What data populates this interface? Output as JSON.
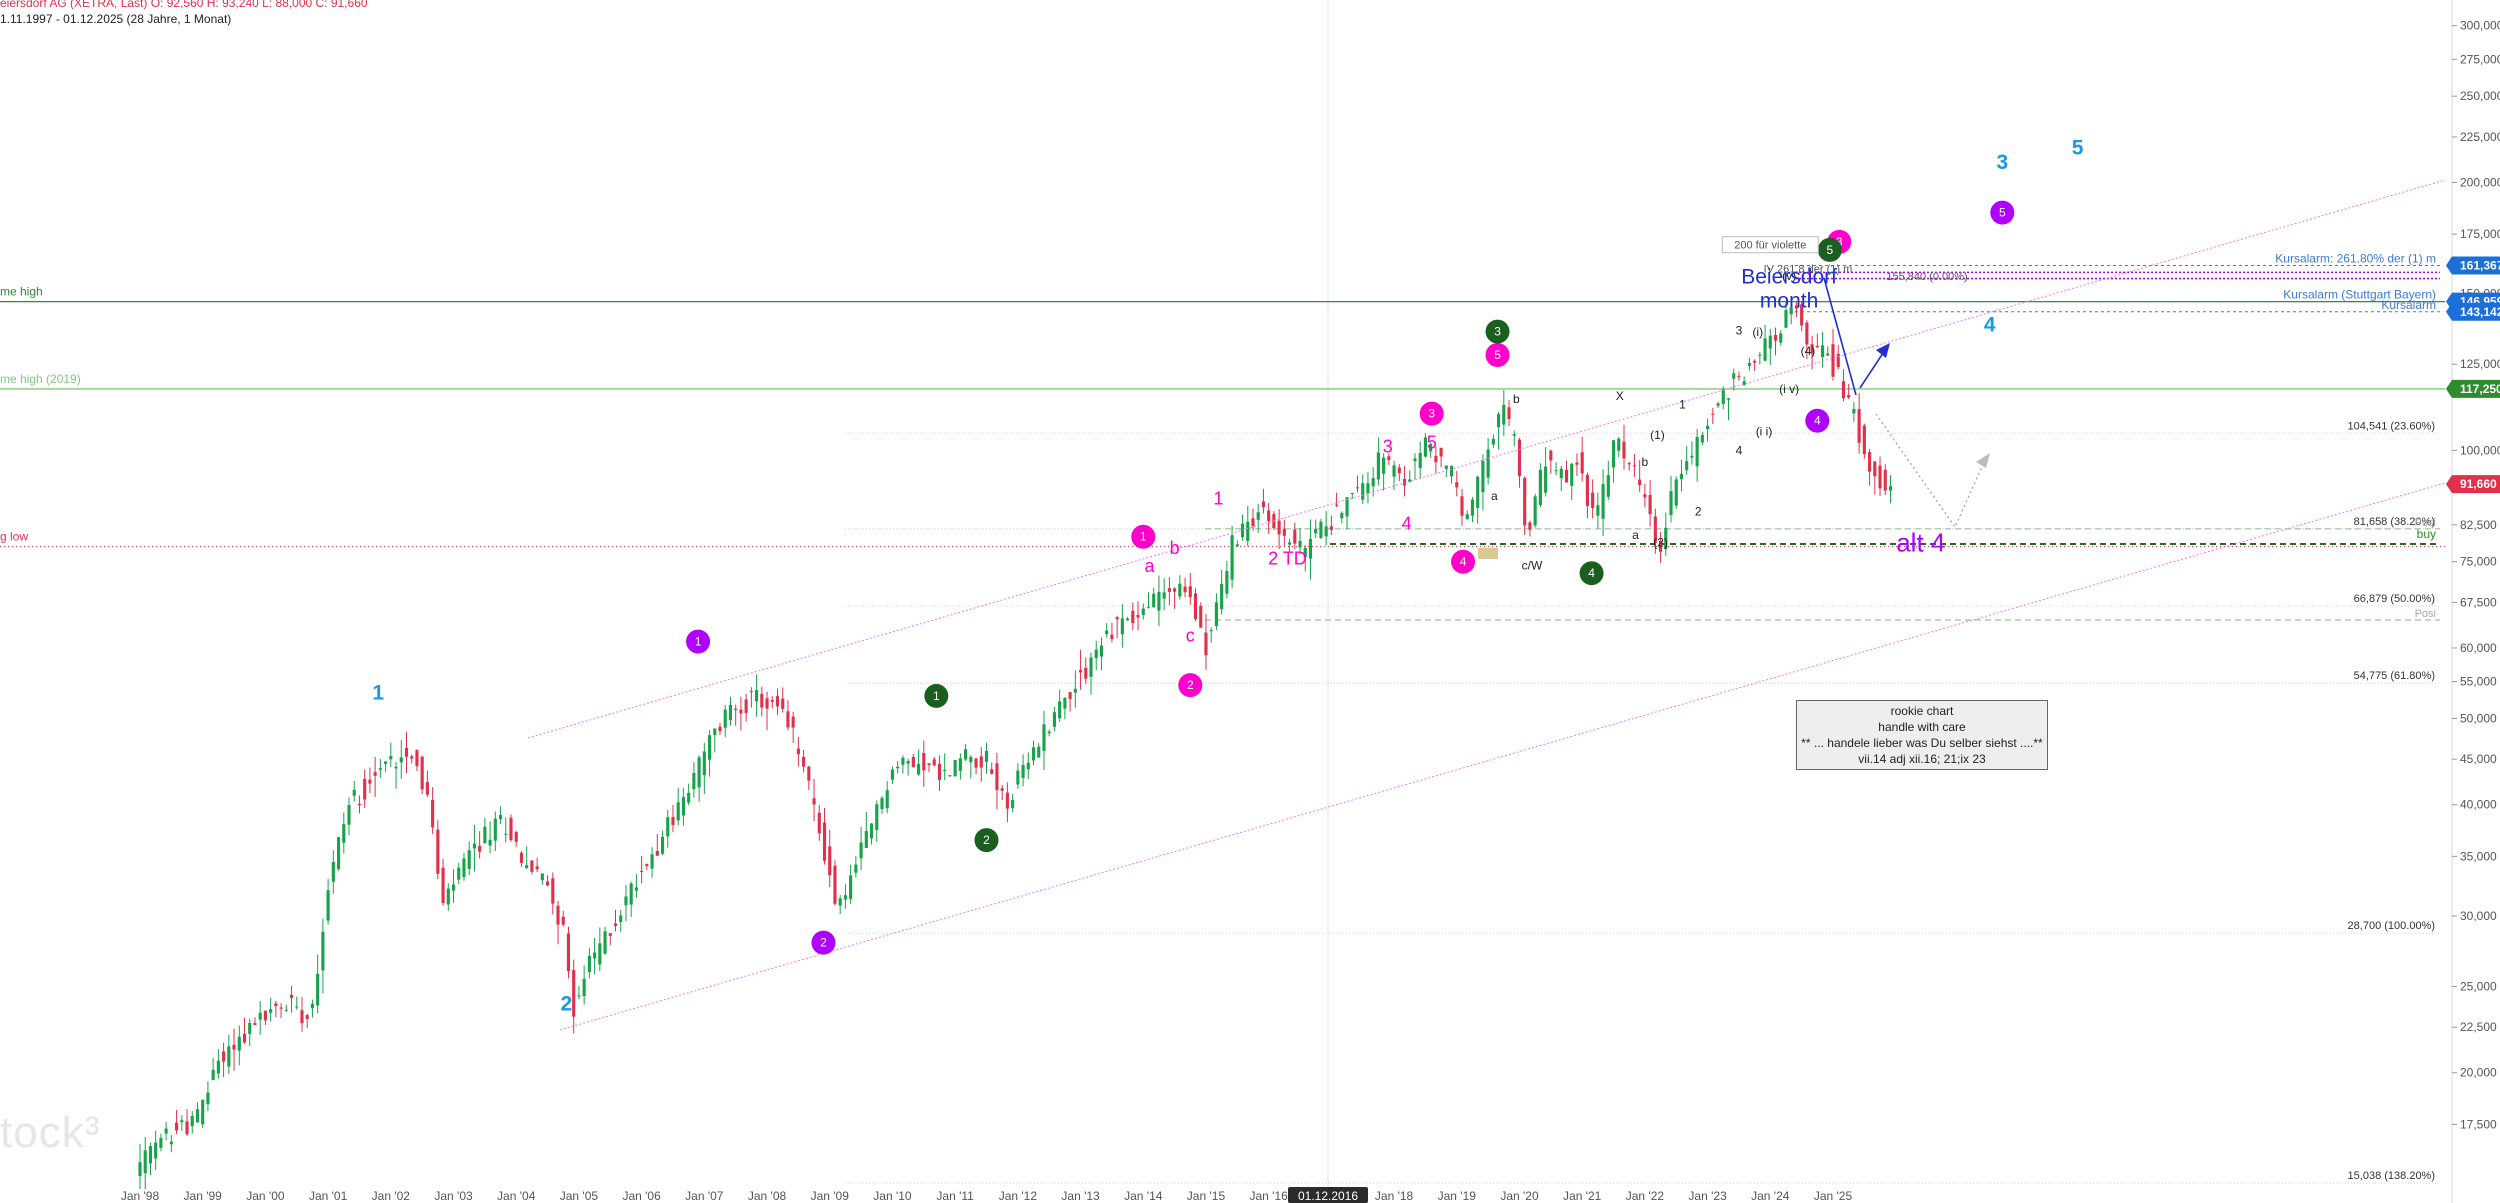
{
  "header": {
    "line1": "eiersdorf AG (XETRA, Last)  O: 92,560  H: 93,240  L: 88,000  C: 91,660",
    "line2": "1.11.1997 - 01.12.2025  (28 Jahre, 1 Monat)"
  },
  "watermark": "tock³",
  "info_box": {
    "lines": [
      "rookie chart",
      "handle with care",
      "** ... handele lieber was Du selber siehst ....**",
      "vii.14 adj xii.16; 21;ix 23"
    ]
  },
  "colors": {
    "up": "#16a34a",
    "down": "#e0314b",
    "magenta": "#ff00cc",
    "purple": "#b000ff",
    "blue": "#1a9ae0",
    "darkgreen": "#1a5e20"
  },
  "chart_data": {
    "type": "candlestick",
    "scale": "log",
    "interval": "1 Monat",
    "ylim": [
      15038,
      310000
    ],
    "y_ticks": [
      17500,
      20000,
      22500,
      25000,
      30000,
      35000,
      40000,
      45000,
      50000,
      55000,
      60000,
      67500,
      75000,
      82500,
      100000,
      125000,
      150000,
      175000,
      200000,
      225000,
      250000,
      275000,
      300000
    ],
    "y_tick_labels": [
      "17,500",
      "20,000",
      "22,500",
      "25,000",
      "30,000",
      "35,000",
      "40,000",
      "45,000",
      "50,000",
      "55,000",
      "60,000",
      "67,500",
      "75,000",
      "82,500",
      "100,000",
      "125,000",
      "150,000",
      "175,000",
      "200,000",
      "225,000",
      "250,000",
      "275,000",
      "300,000"
    ],
    "x_ticks": [
      "Jan '98",
      "Jan '99",
      "Jan '00",
      "Jan '01",
      "Jan '02",
      "Jan '03",
      "Jan '04",
      "Jan '05",
      "Jan '06",
      "Jan '07",
      "Jan '08",
      "Jan '09",
      "Jan '10",
      "Jan '11",
      "Jan '12",
      "Jan '13",
      "Jan '14",
      "Jan '15",
      "Jan '16",
      "Jan '18",
      "Jan '19",
      "Jan '20",
      "Jan '21",
      "Jan '22",
      "Jan '23",
      "Jan '24",
      "Jan '25"
    ],
    "x_tick_labels": [
      "Jan '98",
      "Jan '99",
      "Jan '00",
      "Jan '01",
      "Jan '02",
      "Jan '03",
      "Jan '04",
      "Jan '05",
      "Jan '06",
      "Jan '07",
      "Jan '08",
      "Jan '09",
      "Jan '10",
      "Jan '11",
      "Jan '12",
      "Jan '13",
      "Jan '14",
      "Jan '15",
      "Jan '16",
      "Jan '18",
      "Jan '19",
      "Jan '20",
      "Jan '21",
      "Jan '22",
      "Jan '23",
      "Jan '24",
      "Jan '25"
    ],
    "x_cursor_label": "01.12.2016",
    "price_path": [
      [
        1998.0,
        15500
      ],
      [
        1998.5,
        17000
      ],
      [
        1999.0,
        17800
      ],
      [
        1999.3,
        20500
      ],
      [
        1999.7,
        22000
      ],
      [
        2000.0,
        23000
      ],
      [
        2000.5,
        24000
      ],
      [
        2000.8,
        23200
      ],
      [
        2001.1,
        33000
      ],
      [
        2001.4,
        40000
      ],
      [
        2001.8,
        43000
      ],
      [
        2002.1,
        45000
      ],
      [
        2002.4,
        46500
      ],
      [
        2002.7,
        40000
      ],
      [
        2002.9,
        30500
      ],
      [
        2003.2,
        34000
      ],
      [
        2003.6,
        37000
      ],
      [
        2003.9,
        38500
      ],
      [
        2004.2,
        34500
      ],
      [
        2004.6,
        32500
      ],
      [
        2004.8,
        29500
      ],
      [
        2005.0,
        23800
      ],
      [
        2005.3,
        27000
      ],
      [
        2005.6,
        29000
      ],
      [
        2006.0,
        33000
      ],
      [
        2006.5,
        38000
      ],
      [
        2006.8,
        41000
      ],
      [
        2007.1,
        46000
      ],
      [
        2007.5,
        51500
      ],
      [
        2007.9,
        52500
      ],
      [
        2008.3,
        51000
      ],
      [
        2008.6,
        46000
      ],
      [
        2008.9,
        38000
      ],
      [
        2009.2,
        30500
      ],
      [
        2009.5,
        34000
      ],
      [
        2009.8,
        39000
      ],
      [
        2010.1,
        44000
      ],
      [
        2010.5,
        45000
      ],
      [
        2010.9,
        43000
      ],
      [
        2011.3,
        46000
      ],
      [
        2011.6,
        44500
      ],
      [
        2011.9,
        40000
      ],
      [
        2012.2,
        44000
      ],
      [
        2012.6,
        50000
      ],
      [
        2012.9,
        53500
      ],
      [
        2013.3,
        59000
      ],
      [
        2013.7,
        64500
      ],
      [
        2014.0,
        65000
      ],
      [
        2014.4,
        70000
      ],
      [
        2014.8,
        69000
      ],
      [
        2015.1,
        60500
      ],
      [
        2015.5,
        78000
      ],
      [
        2015.9,
        86000
      ],
      [
        2016.2,
        82000
      ],
      [
        2016.6,
        77000
      ],
      [
        2017.0,
        83000
      ],
      [
        2017.5,
        90000
      ],
      [
        2017.9,
        98500
      ],
      [
        2018.2,
        91000
      ],
      [
        2018.6,
        102000
      ],
      [
        2019.0,
        94000
      ],
      [
        2019.2,
        83000
      ],
      [
        2019.5,
        95000
      ],
      [
        2019.8,
        111000
      ],
      [
        2020.0,
        104000
      ],
      [
        2020.2,
        79000
      ],
      [
        2020.5,
        98000
      ],
      [
        2020.8,
        92000
      ],
      [
        2021.0,
        97000
      ],
      [
        2021.3,
        83000
      ],
      [
        2021.6,
        102000
      ],
      [
        2021.9,
        96000
      ],
      [
        2022.1,
        87000
      ],
      [
        2022.3,
        76000
      ],
      [
        2022.6,
        95000
      ],
      [
        2022.9,
        101000
      ],
      [
        2023.2,
        112000
      ],
      [
        2023.5,
        120000
      ],
      [
        2023.8,
        125000
      ],
      [
        2024.0,
        132000
      ],
      [
        2024.3,
        140000
      ],
      [
        2024.45,
        145000
      ],
      [
        2024.7,
        130000
      ],
      [
        2025.0,
        129000
      ],
      [
        2025.3,
        115000
      ],
      [
        2025.6,
        100000
      ],
      [
        2025.92,
        91660
      ]
    ],
    "price_labels": [
      {
        "value": 161367,
        "text": "161,367",
        "color": "#1c6fd8"
      },
      {
        "value": 146959,
        "text": "146,959",
        "color": "#1c6fd8"
      },
      {
        "value": 143142,
        "text": "143,142",
        "color": "#1c6fd8"
      },
      {
        "value": 117250,
        "text": "117,250",
        "color": "#2e8b2e"
      },
      {
        "value": 91660,
        "text": "91,660",
        "color": "#e0314b"
      }
    ],
    "fib_levels": [
      {
        "value": 104541,
        "label": "104,541 (23.60%)"
      },
      {
        "value": 81658,
        "label": "81,658 (38.20%)"
      },
      {
        "value": 66879,
        "label": "66,879 (50.00%)"
      },
      {
        "value": 54775,
        "label": "54,775 (61.80%)"
      },
      {
        "value": 28700,
        "label": "28,700 (100.00%)"
      },
      {
        "value": 15038,
        "label": "15,038 (138.20%)"
      }
    ],
    "horizontal_lines": [
      {
        "value": 146959,
        "label": "me high",
        "color": "#2e8b2e",
        "style": "solid"
      },
      {
        "value": 117250,
        "label": "me high  (2019)",
        "color": "#7fc97f",
        "style": "solid"
      },
      {
        "value": 78000,
        "label": "g low",
        "color": "#e0314b",
        "style": "dotted"
      }
    ],
    "alert_lines": [
      {
        "value": 161367,
        "label": "Kursalarm: 261.80% der (1) m"
      },
      {
        "value": 146959,
        "label": "Kursalarm (Stuttgart Bayern)"
      },
      {
        "value": 143142,
        "label": "Kursalarm"
      }
    ],
    "buy_line": {
      "value": 78500,
      "label": "buy"
    },
    "posi_lines": [
      {
        "value": 81658,
        "label": "Posi"
      },
      {
        "value": 64500,
        "label": "Posi"
      }
    ],
    "annotations": [
      {
        "x": 2001.8,
        "y": 52500,
        "text": "1",
        "style": "blue-num"
      },
      {
        "x": 2004.8,
        "y": 23500,
        "text": "2",
        "style": "blue-num"
      },
      {
        "x": 2006.9,
        "y": 61000,
        "text": "1",
        "style": "purple-circle"
      },
      {
        "x": 2008.9,
        "y": 28000,
        "text": "2",
        "style": "purple-circle"
      },
      {
        "x": 2010.7,
        "y": 53000,
        "text": "1",
        "style": "green-circle"
      },
      {
        "x": 2011.5,
        "y": 36500,
        "text": "2",
        "style": "green-circle"
      },
      {
        "x": 2014.0,
        "y": 80000,
        "text": "1",
        "style": "magenta-circle"
      },
      {
        "x": 2014.75,
        "y": 54500,
        "text": "2",
        "style": "magenta-circle"
      },
      {
        "x": 2014.1,
        "y": 73000,
        "text": "a",
        "style": "magenta-text"
      },
      {
        "x": 2014.5,
        "y": 76500,
        "text": "b",
        "style": "magenta-text"
      },
      {
        "x": 2014.75,
        "y": 61000,
        "text": "c",
        "style": "magenta-text"
      },
      {
        "x": 2015.2,
        "y": 87000,
        "text": "1",
        "style": "magenta-text"
      },
      {
        "x": 2016.3,
        "y": 74500,
        "text": "2 TD",
        "style": "magenta-text"
      },
      {
        "x": 2017.9,
        "y": 99500,
        "text": "3",
        "style": "magenta-text"
      },
      {
        "x": 2018.2,
        "y": 81500,
        "text": "4",
        "style": "magenta-text"
      },
      {
        "x": 2018.6,
        "y": 100500,
        "text": "5",
        "style": "magenta-text"
      },
      {
        "x": 2018.6,
        "y": 110000,
        "text": "3",
        "style": "magenta-circle"
      },
      {
        "x": 2019.1,
        "y": 75000,
        "text": "4",
        "style": "magenta-circle"
      },
      {
        "x": 2019.65,
        "y": 128000,
        "text": "5",
        "style": "magenta-circle"
      },
      {
        "x": 2019.65,
        "y": 136000,
        "text": "3",
        "style": "green-circle"
      },
      {
        "x": 2021.15,
        "y": 72800,
        "text": "4",
        "style": "green-circle"
      },
      {
        "x": 2019.95,
        "y": 113000,
        "text": "b",
        "style": "small-text"
      },
      {
        "x": 2019.6,
        "y": 88000,
        "text": "a",
        "style": "small-text"
      },
      {
        "x": 2020.2,
        "y": 73500,
        "text": "c/W",
        "style": "small-text"
      },
      {
        "x": 2021.6,
        "y": 114000,
        "text": "X",
        "style": "small-text"
      },
      {
        "x": 2022.0,
        "y": 96000,
        "text": "b",
        "style": "small-text"
      },
      {
        "x": 2021.85,
        "y": 79500,
        "text": "a",
        "style": "small-text"
      },
      {
        "x": 2022.25,
        "y": 78000,
        "text": "(2)",
        "style": "small-text"
      },
      {
        "x": 2022.2,
        "y": 103000,
        "text": "(1)",
        "style": "small-text"
      },
      {
        "x": 2022.6,
        "y": 111500,
        "text": "1",
        "style": "small-text"
      },
      {
        "x": 2022.85,
        "y": 84500,
        "text": "2",
        "style": "small-text"
      },
      {
        "x": 2023.5,
        "y": 135000,
        "text": "3",
        "style": "small-text"
      },
      {
        "x": 2023.5,
        "y": 99000,
        "text": "4",
        "style": "small-text"
      },
      {
        "x": 2023.8,
        "y": 134500,
        "text": "(i)",
        "style": "small-text"
      },
      {
        "x": 2024.3,
        "y": 116000,
        "text": "(i v)",
        "style": "small-text"
      },
      {
        "x": 2023.9,
        "y": 104000,
        "text": "(i i)",
        "style": "small-text"
      },
      {
        "x": 2024.6,
        "y": 128000,
        "text": "(4)",
        "style": "small-text"
      },
      {
        "x": 2024.3,
        "y": 155500,
        "text": "(v)",
        "style": "small-text"
      },
      {
        "x": 2024.75,
        "y": 108000,
        "text": "4",
        "style": "purple-circle"
      },
      {
        "x": 2025.1,
        "y": 171500,
        "text": "3",
        "style": "magenta-circle"
      },
      {
        "x": 2024.95,
        "y": 168000,
        "text": "5",
        "style": "green-circle"
      },
      {
        "x": 2027.7,
        "y": 185000,
        "text": "5",
        "style": "purple-circle"
      },
      {
        "x": 2027.7,
        "y": 207000,
        "text": "3",
        "style": "blue-num"
      },
      {
        "x": 2028.9,
        "y": 215000,
        "text": "5",
        "style": "blue-num"
      },
      {
        "x": 2027.5,
        "y": 136000,
        "text": "4",
        "style": "blue-num"
      },
      {
        "x": 2026.4,
        "y": 77000,
        "text": "alt 4",
        "style": "purple-text"
      },
      {
        "x": 2024.3,
        "y": 154000,
        "text": "Beiersdorf\nmonth",
        "style": "title-text"
      },
      {
        "x": 2024.0,
        "y": 168500,
        "text": "200 für  violette",
        "style": "boxed-small"
      },
      {
        "x": 2024.6,
        "y": 158500,
        "text": "IV  261,8 der (1) m",
        "style": "tiny"
      },
      {
        "x": 2026.5,
        "y": 155500,
        "text": "155,840 (0.00%)",
        "style": "tiny"
      }
    ]
  }
}
